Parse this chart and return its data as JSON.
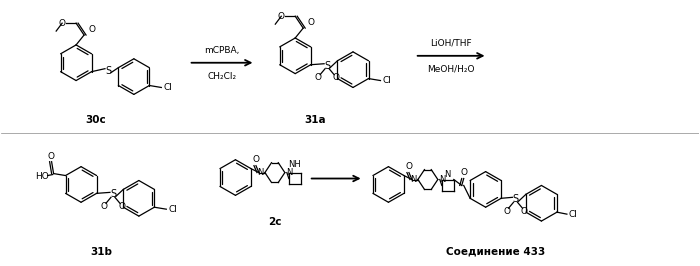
{
  "background_color": "#ffffff",
  "figsize": [
    7.0,
    2.66
  ],
  "dpi": 100,
  "top_row": {
    "compound_30c_label": "30c",
    "compound_31a_label": "31a",
    "arrow1_reagents_top": "mCPBA,",
    "arrow1_reagents_bot": "CH₂Cl₂",
    "arrow2_reagents_top": "LiOH/THF",
    "arrow2_reagents_bot": "MeOH/H₂O"
  },
  "bottom_row": {
    "compound_31b_label": "31b",
    "compound_2c_label": "2c",
    "compound_product_label": "Соединение 433"
  },
  "bond_color": "#000000",
  "lw": 0.9,
  "ring_r": 18,
  "font_label": 7.5,
  "font_reagent": 6.5
}
